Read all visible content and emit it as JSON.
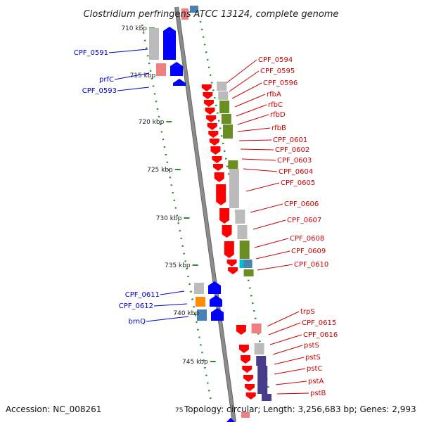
{
  "title": "Clostridium perfringens ATCC 13124, complete genome",
  "accession": "Accession: NC_008261",
  "footer_stats": "Topology: circular; Length: 3,256,683 bp; Genes: 2,993",
  "partial_tick_text": "75",
  "ticks": [
    "710 kbp",
    "715 kbp",
    "720 kbp",
    "725 kbp",
    "730 kbp",
    "735 kbp",
    "740 kbp",
    "745 kbp"
  ],
  "colors": {
    "forward_cds": "#0000ff",
    "reverse_cds": "#ff0000",
    "forward_label": "#0000cc",
    "reverse_label": "#cc0000",
    "backbone": "#8c8c8c",
    "grid_dot": "#2e8b2e",
    "cog_gray": "#bbbbbb",
    "cog_pink": "#f08080",
    "cog_olive": "#6b8e23",
    "cog_steel": "#4682b4",
    "cog_orange": "#ff8c00",
    "cog_navy": "#483d8b",
    "cog_cyan": "#00bcd4"
  },
  "forward_labels": [
    "CPF_0591",
    "prfC",
    "CPF_0593",
    "CPF_0611",
    "CPF_0612",
    "brnQ"
  ],
  "reverse_labels": [
    "CPF_0594",
    "CPF_0595",
    "CPF_0596",
    "rfbA",
    "rfbC",
    "rfbD",
    "rfbB",
    "CPF_0601",
    "CPF_0602",
    "CPF_0603",
    "CPF_0604",
    "CPF_0605",
    "CPF_0606",
    "CPF_0607",
    "CPF_0608",
    "CPF_0609",
    "CPF_0610",
    "trpS",
    "CPF_0615",
    "CPF_0616",
    "pstS",
    "pstS",
    "pstC",
    "pstA",
    "pstB"
  ]
}
